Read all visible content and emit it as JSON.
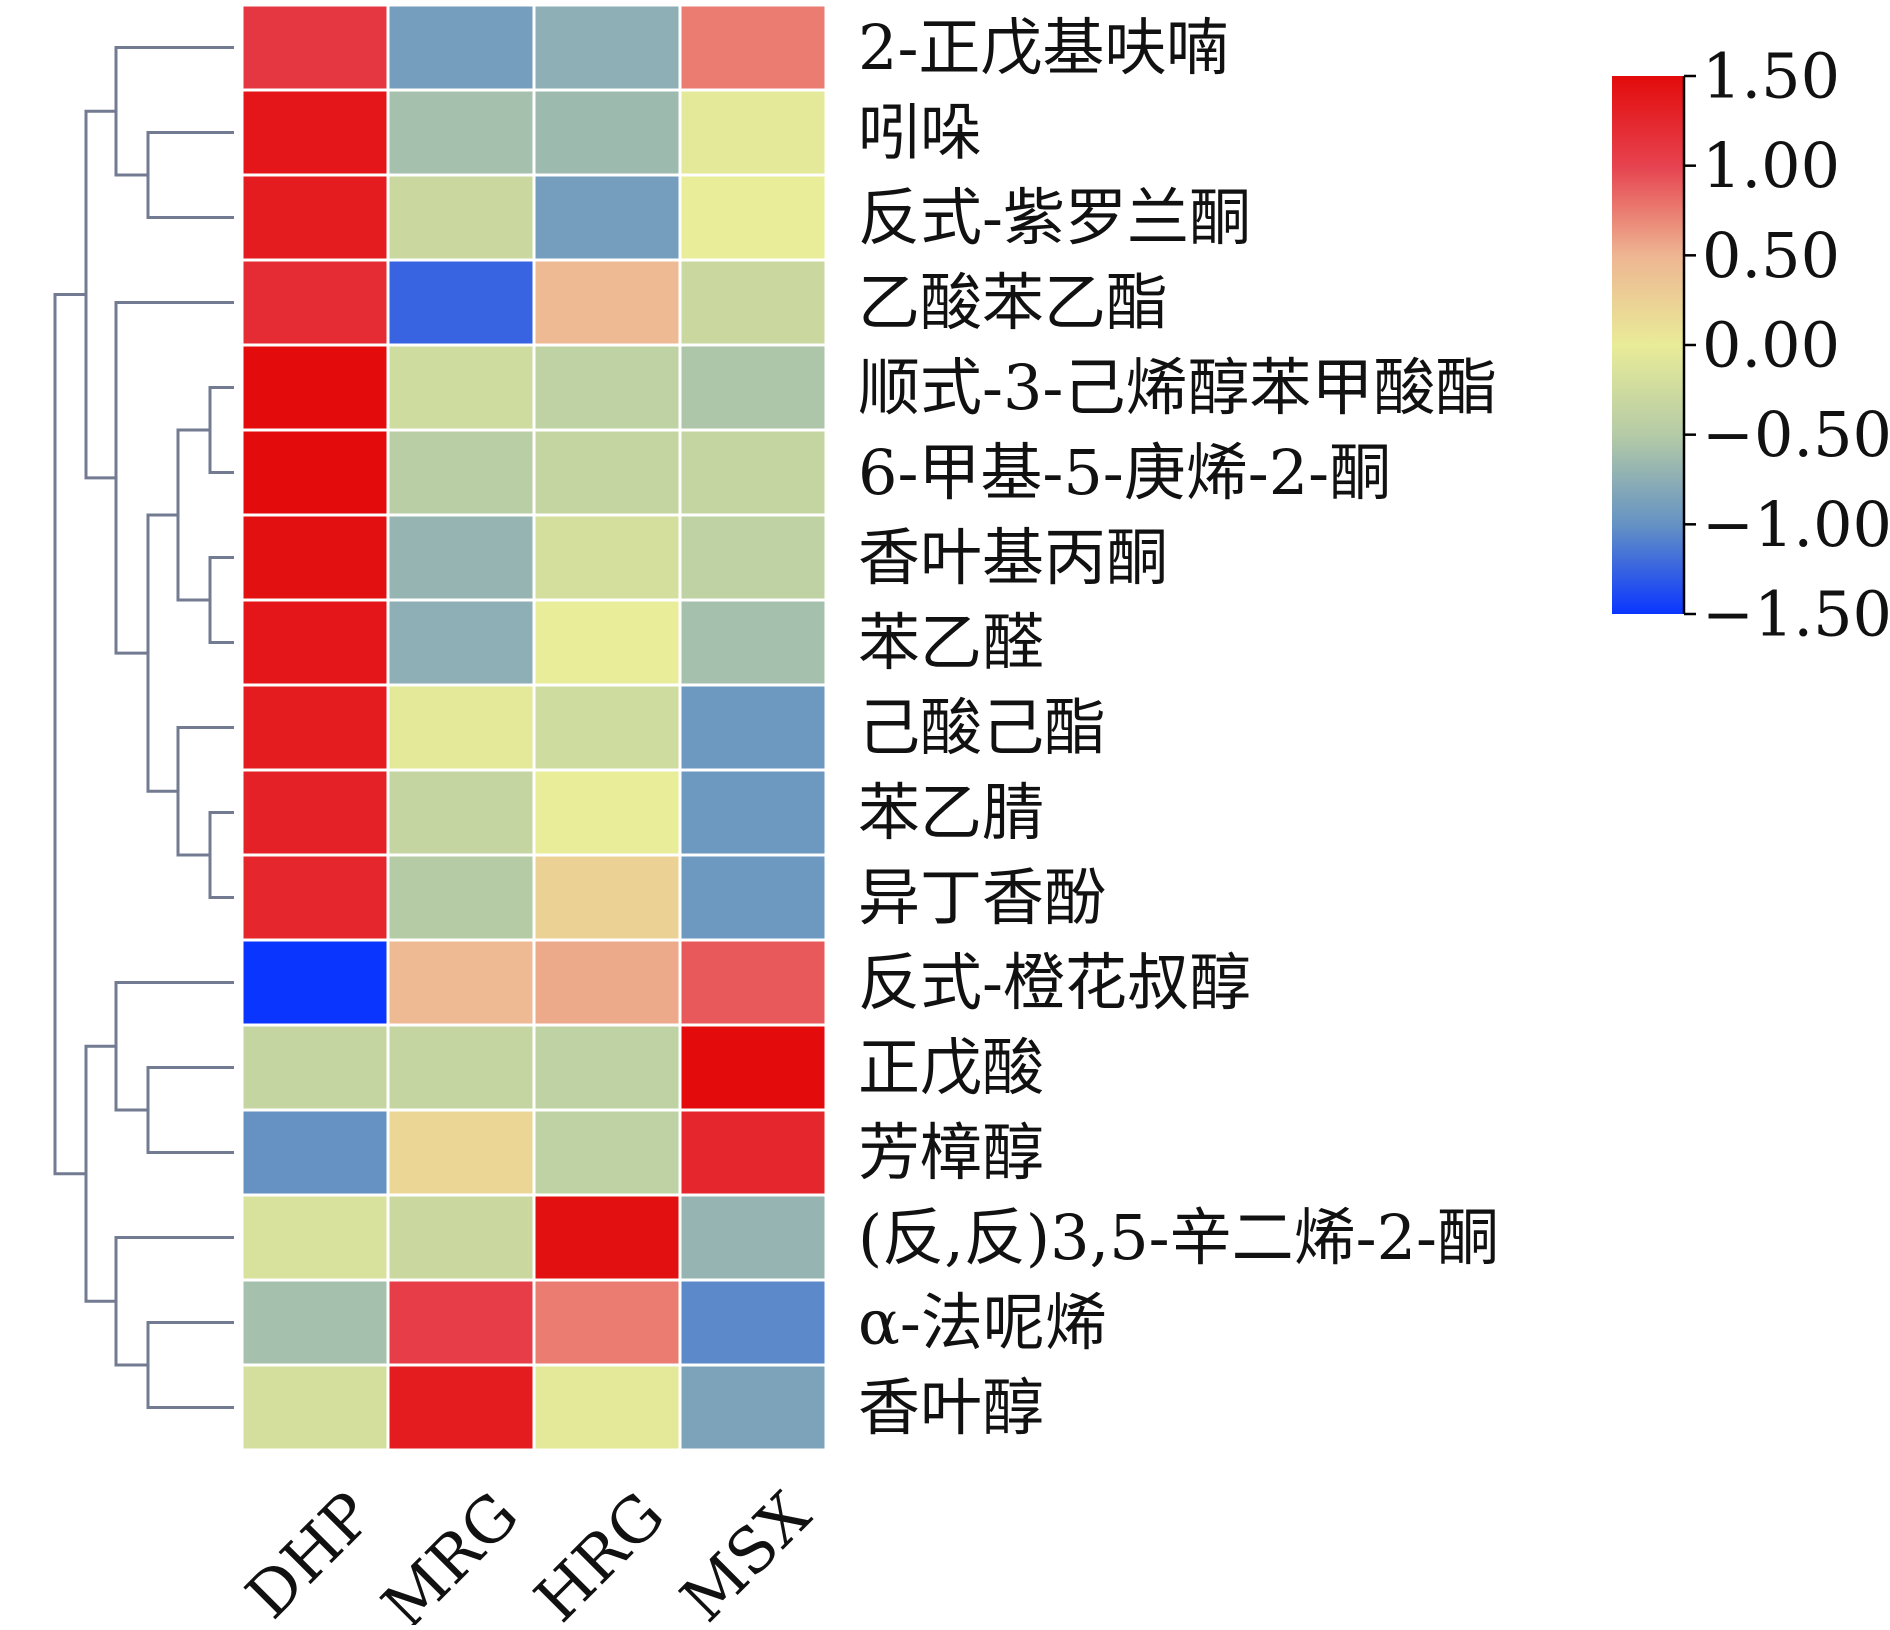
{
  "chart_data": {
    "type": "heatmap",
    "columns": [
      "DHP",
      "MRG",
      "HRG",
      "MSX"
    ],
    "rows": [
      "2-正戊基呋喃",
      "吲哚",
      "反式-紫罗兰酮",
      "乙酸苯乙酯",
      "顺式-3-己烯醇苯甲酸酯",
      "6-甲基-5-庚烯-2-酮",
      "香叶基丙酮",
      "苯乙醛",
      "己酸己酯",
      "苯乙腈",
      "异丁香酚",
      "反式-橙花叔醇",
      "正戊酸",
      "芳樟醇",
      "(反,反)3,5-辛二烯-2-酮",
      "α-法呢烯",
      "香叶醇"
    ],
    "values": [
      [
        1.1,
        -0.9,
        -0.75,
        0.75
      ],
      [
        1.4,
        -0.6,
        -0.65,
        -0.05
      ],
      [
        1.35,
        -0.3,
        -0.9,
        0.0
      ],
      [
        1.2,
        -1.25,
        0.45,
        -0.3
      ],
      [
        1.5,
        -0.25,
        -0.4,
        -0.55
      ],
      [
        1.5,
        -0.45,
        -0.35,
        -0.35
      ],
      [
        1.45,
        -0.7,
        -0.2,
        -0.4
      ],
      [
        1.4,
        -0.75,
        0.0,
        -0.6
      ],
      [
        1.35,
        -0.05,
        -0.25,
        -0.95
      ],
      [
        1.3,
        -0.35,
        0.0,
        -0.95
      ],
      [
        1.25,
        -0.5,
        0.25,
        -0.95
      ],
      [
        -1.5,
        0.45,
        0.55,
        0.9
      ],
      [
        -0.35,
        -0.35,
        -0.4,
        1.5
      ],
      [
        -1.0,
        0.2,
        -0.4,
        1.25
      ],
      [
        -0.15,
        -0.3,
        1.45,
        -0.7
      ],
      [
        -0.6,
        1.05,
        0.75,
        -1.05
      ],
      [
        -0.2,
        1.35,
        -0.05,
        -0.85
      ]
    ],
    "colorbar": {
      "min": -1.5,
      "max": 1.5,
      "ticks": [
        1.5,
        1.0,
        0.5,
        0.0,
        -0.5,
        -1.0,
        -1.5
      ],
      "tick_labels": [
        "1.50",
        "1.00",
        "0.50",
        "0.00",
        "−0.50",
        "−1.00",
        "−1.50"
      ],
      "colors": [
        "#0a35ff",
        "#6592c3",
        "#b5cba6",
        "#e9ec98",
        "#eeb592",
        "#e6424f",
        "#e30b0b"
      ]
    },
    "dendrogram_color": "#727b92",
    "cell_border_color": "#ffffff",
    "x_tick_rotation_deg": -45,
    "title": "",
    "xlabel": "",
    "ylabel": ""
  }
}
